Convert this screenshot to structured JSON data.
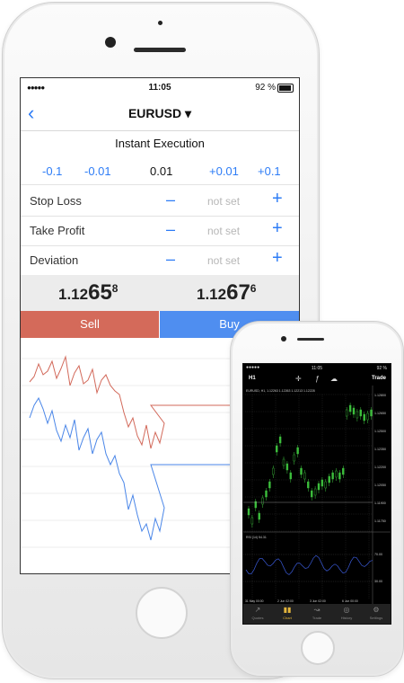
{
  "status": {
    "signal": "●●●●●",
    "time": "11:05",
    "battery": "92 %"
  },
  "nav": {
    "back": "‹",
    "title": "EURUSD ▾"
  },
  "order": {
    "execution": "Instant Execution",
    "volumes": [
      "-0.1",
      "-0.01",
      "0.01",
      "+0.01",
      "+0.1"
    ],
    "rows": [
      {
        "label": "Stop Loss",
        "minus": "–",
        "value": "not set",
        "plus": "+"
      },
      {
        "label": "Take Profit",
        "minus": "–",
        "value": "not set",
        "plus": "+"
      },
      {
        "label": "Deviation",
        "minus": "–",
        "value": "not set",
        "plus": "+"
      }
    ],
    "bid": {
      "big_a": "1.12",
      "big_b": "65",
      "small": "8"
    },
    "ask": {
      "big_a": "1.12",
      "big_b": "67",
      "small": "6"
    },
    "sell_label": "Sell",
    "buy_label": "Buy"
  },
  "tick_chart": {
    "red": [
      48,
      42,
      28,
      40,
      36,
      25,
      44,
      33,
      20,
      52,
      38,
      30,
      50,
      46,
      34,
      60,
      46,
      40,
      52,
      58,
      62,
      82,
      98,
      88,
      108,
      118,
      96,
      122,
      104,
      116,
      94,
      80,
      74,
      74,
      74,
      74,
      74,
      74,
      74,
      74,
      74,
      74,
      74,
      74,
      74,
      74,
      74,
      74,
      74,
      74
    ],
    "blue": [
      88,
      74,
      66,
      78,
      94,
      80,
      102,
      114,
      96,
      110,
      90,
      124,
      110,
      100,
      128,
      112,
      104,
      128,
      140,
      130,
      150,
      160,
      190,
      174,
      196,
      214,
      206,
      224,
      200,
      214,
      188,
      170,
      140,
      140,
      140,
      140,
      140,
      140,
      140,
      140,
      140,
      140,
      140,
      140,
      140,
      140,
      140,
      140,
      140,
      140
    ]
  },
  "phone2": {
    "status": {
      "signal": "●●●●●",
      "time": "11:05",
      "battery": "92 %"
    },
    "toolbar": {
      "timeframe": "H1",
      "trade": "Trade"
    },
    "chart_header": "EURUSD, H1, 1.12263 1.12263 1.12213 1.12228",
    "rsi_label": "RSI (14) 54.31",
    "price_labels": [
      "1.12800",
      "1.12650",
      "1.12500",
      "1.12350",
      "1.12200",
      "1.12050",
      "1.11900",
      "1.11750"
    ],
    "rsi_levels": [
      "70.00",
      "30.00"
    ],
    "date_labels": [
      "31 May 00:00",
      "2 Jun 02:00",
      "3 Jun 02:00",
      "6 Jun 00:00"
    ],
    "tabs": [
      {
        "label": "Quotes",
        "icon": "quotes-icon"
      },
      {
        "label": "Chart",
        "icon": "chart-icon"
      },
      {
        "label": "Trade",
        "icon": "trade-icon"
      },
      {
        "label": "History",
        "icon": "history-icon"
      },
      {
        "label": "Settings",
        "icon": "settings-icon"
      }
    ]
  },
  "colors": {
    "accent": "#2d7cf6",
    "sell": "#d46a5a",
    "buy": "#4f8ef0",
    "chart_red": "#d2695a",
    "chart_blue": "#4a86e8",
    "candle": "#3cbf3c",
    "active_tab": "#e3b53c"
  }
}
